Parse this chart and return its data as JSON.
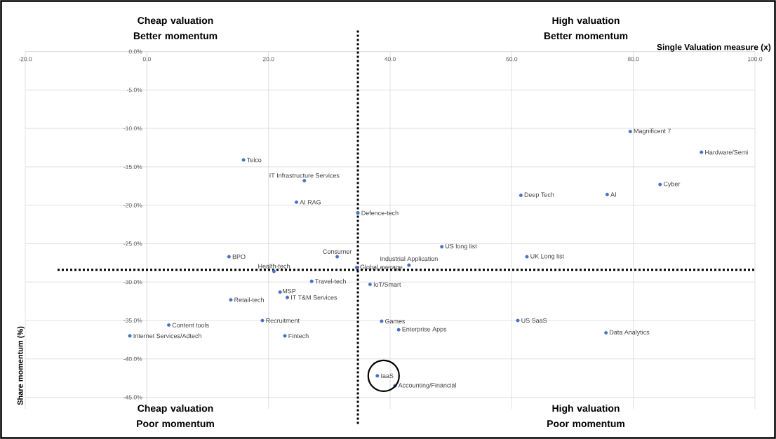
{
  "chart_data": {
    "type": "scatter",
    "xlabel": "Single Valuation measure (x)",
    "ylabel": "Share momentum (%)",
    "xlim": [
      -20,
      100
    ],
    "ylim": [
      -46.5,
      0
    ],
    "xticks": [
      {
        "value": -20,
        "label": "-20.0"
      },
      {
        "value": 0,
        "label": "0.0"
      },
      {
        "value": 20,
        "label": "20.0"
      },
      {
        "value": 40,
        "label": "40.0"
      },
      {
        "value": 60,
        "label": "60.0"
      },
      {
        "value": 80,
        "label": "80.0"
      },
      {
        "value": 100,
        "label": "100.0"
      }
    ],
    "yticks": [
      {
        "value": 0,
        "label": "0.0%"
      },
      {
        "value": -5,
        "label": "-5.0%"
      },
      {
        "value": -10,
        "label": "-10.0%"
      },
      {
        "value": -15,
        "label": "-15.0%"
      },
      {
        "value": -20,
        "label": "-20.0%"
      },
      {
        "value": -25,
        "label": "-25.0%"
      },
      {
        "value": -30,
        "label": "-30.0%"
      },
      {
        "value": -35,
        "label": "-35.0%"
      },
      {
        "value": -40,
        "label": "-40.0%"
      },
      {
        "value": -45,
        "label": "-45.0%"
      }
    ],
    "grid": true,
    "marker": "circle",
    "series": [
      {
        "name": "Telco",
        "color": "#4472c4",
        "x": [
          15.9
        ],
        "values": [
          -14.1
        ]
      },
      {
        "name": "IT Infrastructure Services",
        "color": "#4472c4",
        "x": [
          25.9
        ],
        "values": [
          -16.8
        ]
      },
      {
        "name": "AI RAG",
        "color": "#4472c4",
        "x": [
          24.6
        ],
        "values": [
          -19.6
        ]
      },
      {
        "name": "Defence-tech",
        "color": "#4472c4",
        "x": [
          34.7
        ],
        "values": [
          -21.0
        ]
      },
      {
        "name": "Magnificent 7",
        "color": "#4472c4",
        "x": [
          79.5
        ],
        "values": [
          -10.4
        ]
      },
      {
        "name": "Hardware/Semi",
        "color": "#4472c4",
        "x": [
          91.2
        ],
        "values": [
          -13.1
        ]
      },
      {
        "name": "Cyber",
        "color": "#4472c4",
        "x": [
          84.4
        ],
        "values": [
          -17.3
        ]
      },
      {
        "name": "AI",
        "color": "#4472c4",
        "x": [
          75.7
        ],
        "values": [
          -18.6
        ]
      },
      {
        "name": "Deep Tech",
        "color": "#4472c4",
        "x": [
          61.5
        ],
        "values": [
          -18.7
        ]
      },
      {
        "name": "US long list",
        "color": "#4472c4",
        "x": [
          48.5
        ],
        "values": [
          -25.4
        ]
      },
      {
        "name": "BPO",
        "color": "#4472c4",
        "x": [
          13.5
        ],
        "values": [
          -26.7
        ]
      },
      {
        "name": "Consumer",
        "color": "#4472c4",
        "x": [
          31.3
        ],
        "values": [
          -26.7
        ]
      },
      {
        "name": "Health-tech",
        "color": "#4472c4",
        "x": [
          20.9
        ],
        "values": [
          -28.6
        ]
      },
      {
        "name": "Global average",
        "color": "#4472c4",
        "x": [
          34.5
        ],
        "values": [
          -28.1
        ]
      },
      {
        "name": "Travel-tech",
        "color": "#4472c4",
        "x": [
          27.1
        ],
        "values": [
          -29.9
        ]
      },
      {
        "name": "IoT/Smart",
        "color": "#4472c4",
        "x": [
          36.7
        ],
        "values": [
          -30.3
        ]
      },
      {
        "name": "MSP",
        "color": "#4472c4",
        "x": [
          21.9
        ],
        "values": [
          -31.3
        ]
      },
      {
        "name": "IT T&M Services",
        "color": "#4472c4",
        "x": [
          23.1
        ],
        "values": [
          -32.0
        ]
      },
      {
        "name": "Retail-tech",
        "color": "#4472c4",
        "x": [
          13.8
        ],
        "values": [
          -32.3
        ]
      },
      {
        "name": "Recruitment",
        "color": "#4472c4",
        "x": [
          19.0
        ],
        "values": [
          -35.0
        ]
      },
      {
        "name": "Content tools",
        "color": "#4472c4",
        "x": [
          3.6
        ],
        "values": [
          -35.6
        ]
      },
      {
        "name": "Internet Services/Adtech",
        "color": "#4472c4",
        "x": [
          -2.8
        ],
        "values": [
          -37.0
        ]
      },
      {
        "name": "Fintech",
        "color": "#4472c4",
        "x": [
          22.7
        ],
        "values": [
          -37.0
        ]
      },
      {
        "name": "Games",
        "color": "#4472c4",
        "x": [
          38.6
        ],
        "values": [
          -35.1
        ]
      },
      {
        "name": "IaaS",
        "color": "#4472c4",
        "x": [
          37.9
        ],
        "values": [
          -42.2
        ]
      },
      {
        "name": "Industrial Application",
        "color": "#4472c4",
        "x": [
          43.1
        ],
        "values": [
          -27.8
        ]
      },
      {
        "name": "UK Long list",
        "color": "#4472c4",
        "x": [
          62.5
        ],
        "values": [
          -26.7
        ]
      },
      {
        "name": "Enterprise Apps",
        "color": "#4472c4",
        "x": [
          41.4
        ],
        "values": [
          -36.2
        ]
      },
      {
        "name": "US SaaS",
        "color": "#4472c4",
        "x": [
          61.0
        ],
        "values": [
          -35.0
        ]
      },
      {
        "name": "Data Analytics",
        "color": "#4472c4",
        "x": [
          75.5
        ],
        "values": [
          -36.6
        ]
      },
      {
        "name": "Accounting/Financial",
        "color": "#4472c4",
        "x": [
          40.8
        ],
        "values": [
          -43.5
        ]
      }
    ],
    "ref_lines": [
      {
        "axis": "x",
        "value": 34.7,
        "color": "#000000",
        "line_style": "dotted"
      },
      {
        "axis": "y",
        "value": -28.4,
        "color": "#000000",
        "line_style": "dotted"
      }
    ],
    "annotations": [
      "Cheap valuation Better momentum",
      "High valuation Better momentum",
      "Cheap valuation Poor momentum",
      "High valuation Poor momentum"
    ]
  }
}
